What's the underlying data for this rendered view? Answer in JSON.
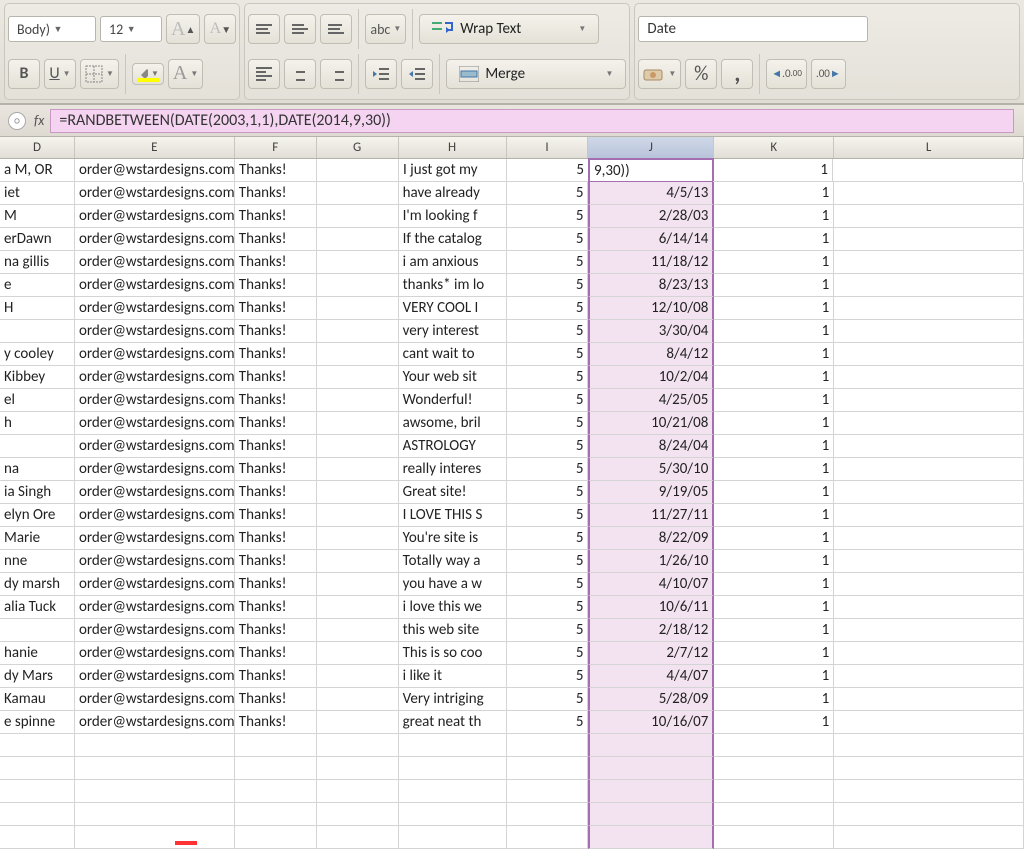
{
  "ribbon": {
    "font_name": "Body)",
    "font_size": "12",
    "wrap_text": "Wrap Text",
    "merge": "Merge",
    "name_box": "Date"
  },
  "formula_bar": {
    "formula": "=RANDBETWEEN(DATE(2003,1,1),DATE(2014,9,30))"
  },
  "columns": [
    "D",
    "E",
    "F",
    "G",
    "H",
    "I",
    "J",
    "K",
    "L"
  ],
  "selected_col": "J",
  "editing_cell": {
    "row": 0,
    "col": "J",
    "text": "9,30))"
  },
  "colors": {
    "highlight_bg": "#f3e3f1",
    "highlight_border": "#a46fb0",
    "formula_bg": "#f4d4f0"
  },
  "col_widths": {
    "D": 75,
    "E": 160,
    "F": 82,
    "G": 82,
    "H": 108,
    "I": 82,
    "J": 126,
    "K": 120,
    "L": 190
  },
  "rows": [
    {
      "D": "a M, OR",
      "E": "order@wstardesigns.com",
      "F": "Thanks!",
      "G": "",
      "H": "I just got my",
      "I": "5",
      "J": "9,30))",
      "K": "1"
    },
    {
      "D": "iet",
      "E": "order@wstardesigns.com",
      "F": "Thanks!",
      "G": "",
      "H": "have already",
      "I": "5",
      "J": "4/5/13",
      "K": "1"
    },
    {
      "D": "M",
      "E": "order@wstardesigns.com",
      "F": "Thanks!",
      "G": "",
      "H": "I'm looking f",
      "I": "5",
      "J": "2/28/03",
      "K": "1"
    },
    {
      "D": "erDawn",
      "E": "order@wstardesigns.com",
      "F": "Thanks!",
      "G": "",
      "H": "If the catalog",
      "I": "5",
      "J": "6/14/14",
      "K": "1"
    },
    {
      "D": "na gillis",
      "E": "order@wstardesigns.com",
      "F": "Thanks!",
      "G": "",
      "H": "i am anxious",
      "I": "5",
      "J": "11/18/12",
      "K": "1"
    },
    {
      "D": "e",
      "E": "order@wstardesigns.com",
      "F": "Thanks!",
      "G": "",
      "H": "thanks* im lo",
      "I": "5",
      "J": "8/23/13",
      "K": "1"
    },
    {
      "D": "H",
      "E": "order@wstardesigns.com",
      "F": "Thanks!",
      "G": "",
      "H": "VERY COOL I",
      "I": "5",
      "J": "12/10/08",
      "K": "1"
    },
    {
      "D": "",
      "E": "order@wstardesigns.com",
      "F": "Thanks!",
      "G": "",
      "H": "very interest",
      "I": "5",
      "J": "3/30/04",
      "K": "1"
    },
    {
      "D": "y cooley",
      "E": "order@wstardesigns.com",
      "F": "Thanks!",
      "G": "",
      "H": "cant wait to",
      "I": "5",
      "J": "8/4/12",
      "K": "1"
    },
    {
      "D": "Kibbey",
      "E": "order@wstardesigns.com",
      "F": "Thanks!",
      "G": "",
      "H": "Your web sit",
      "I": "5",
      "J": "10/2/04",
      "K": "1"
    },
    {
      "D": "el",
      "E": "order@wstardesigns.com",
      "F": "Thanks!",
      "G": "",
      "H": "Wonderful!",
      "I": "5",
      "J": "4/25/05",
      "K": "1"
    },
    {
      "D": "h",
      "E": "order@wstardesigns.com",
      "F": "Thanks!",
      "G": "",
      "H": "awsome, bril",
      "I": "5",
      "J": "10/21/08",
      "K": "1"
    },
    {
      "D": "",
      "E": "order@wstardesigns.com",
      "F": "Thanks!",
      "G": "",
      "H": "ASTROLOGY",
      "I": "5",
      "J": "8/24/04",
      "K": "1"
    },
    {
      "D": "na",
      "E": "order@wstardesigns.com",
      "F": "Thanks!",
      "G": "",
      "H": "really interes",
      "I": "5",
      "J": "5/30/10",
      "K": "1"
    },
    {
      "D": "ia Singh",
      "E": "order@wstardesigns.com",
      "F": "Thanks!",
      "G": "",
      "H": "Great site!",
      "I": "5",
      "J": "9/19/05",
      "K": "1"
    },
    {
      "D": "elyn Ore",
      "E": "order@wstardesigns.com",
      "F": "Thanks!",
      "G": "",
      "H": "I LOVE THIS S",
      "I": "5",
      "J": "11/27/11",
      "K": "1"
    },
    {
      "D": "Marie",
      "E": "order@wstardesigns.com",
      "F": "Thanks!",
      "G": "",
      "H": " You're site is",
      "I": "5",
      "J": "8/22/09",
      "K": "1"
    },
    {
      "D": "nne",
      "E": "order@wstardesigns.com",
      "F": "Thanks!",
      "G": "",
      "H": "Totally way a",
      "I": "5",
      "J": "1/26/10",
      "K": "1"
    },
    {
      "D": "dy marsh",
      "E": "order@wstardesigns.com",
      "F": "Thanks!",
      "G": "",
      "H": "you have a w",
      "I": "5",
      "J": "4/10/07",
      "K": "1"
    },
    {
      "D": "alia Tuck",
      "E": "order@wstardesigns.com",
      "F": "Thanks!",
      "G": "",
      "H": "i love this we",
      "I": "5",
      "J": "10/6/11",
      "K": "1"
    },
    {
      "D": "",
      "E": "order@wstardesigns.com",
      "F": "Thanks!",
      "G": "",
      "H": "this web site",
      "I": "5",
      "J": "2/18/12",
      "K": "1"
    },
    {
      "D": "hanie",
      "E": "order@wstardesigns.com",
      "F": "Thanks!",
      "G": "",
      "H": "This is so coo",
      "I": "5",
      "J": "2/7/12",
      "K": "1"
    },
    {
      "D": "dy Mars",
      "E": "order@wstardesigns.com",
      "F": "Thanks!",
      "G": "",
      "H": "i like it",
      "I": "5",
      "J": "4/4/07",
      "K": "1"
    },
    {
      "D": " Kamau",
      "E": "order@wstardesigns.com",
      "F": "Thanks!",
      "G": "",
      "H": "Very intriging",
      "I": "5",
      "J": "5/28/09",
      "K": "1"
    },
    {
      "D": "e spinne",
      "E": "order@wstardesigns.com",
      "F": "Thanks!",
      "G": "",
      "H": "great neat th",
      "I": "5",
      "J": "10/16/07",
      "K": "1"
    }
  ]
}
